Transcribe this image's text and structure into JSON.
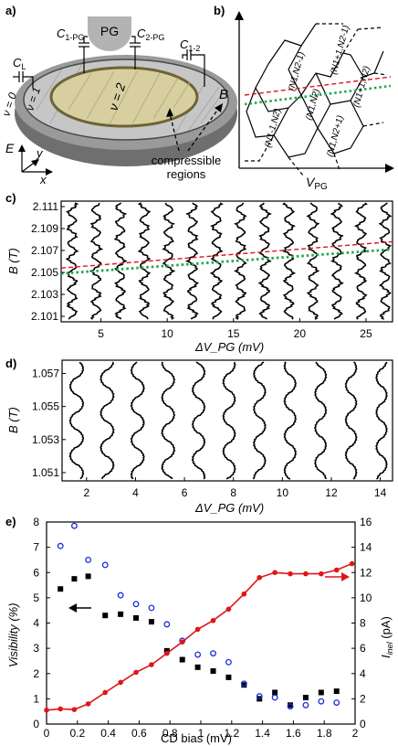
{
  "panels": {
    "a": {
      "label": "a)",
      "pg_label": "PG",
      "c_labels": [
        "C",
        "C",
        "C",
        "C"
      ],
      "c_subs": [
        "L",
        "1-PG",
        "2-PG",
        "1-2"
      ],
      "nu_labels": [
        "ν = 0",
        "ν = 1",
        "ν = 2"
      ],
      "axes": [
        "E",
        "y",
        "x"
      ],
      "compressible_label_1": "compressible",
      "compressible_label_2": "regions"
    },
    "b": {
      "label": "b)",
      "ylabel": "B",
      "xlabel": "V",
      "xlabel_sub": "PG",
      "states": [
        "(N1,N2-1)",
        "(N1+1,N2-1)",
        "(N1,N2)",
        "(N1+1,N2)",
        "(N1-1,N2)",
        "(N1,N2+1)"
      ]
    }
  },
  "chart_data": [
    {
      "id": "c",
      "label": "c)",
      "type": "line",
      "ylabel": "B (T)",
      "xlabel": "ΔV_PG (mV)",
      "xlim": [
        2,
        27
      ],
      "ylim": [
        2.1005,
        2.1115
      ],
      "xticks": [
        5,
        10,
        15,
        20,
        25
      ],
      "yticks": [
        2.101,
        2.103,
        2.105,
        2.107,
        2.109,
        2.111
      ],
      "ytick_labels": [
        "2.101",
        "2.103",
        "2.105",
        "2.107",
        "2.109",
        "2.111"
      ],
      "trace_count": 14,
      "guides": [
        {
          "style": "red-dashed",
          "x": [
            2,
            27
          ],
          "y": [
            2.1054,
            2.1078
          ]
        },
        {
          "style": "green-dotted",
          "x": [
            2,
            27
          ],
          "y": [
            2.1049,
            2.1071
          ]
        }
      ]
    },
    {
      "id": "d",
      "label": "d)",
      "type": "line",
      "ylabel": "B (T)",
      "xlabel": "ΔV_PG (mV)",
      "xlim": [
        1,
        14.5
      ],
      "ylim": [
        1.0505,
        1.0578
      ],
      "xticks": [
        2,
        4,
        6,
        8,
        10,
        12,
        14
      ],
      "yticks": [
        1.051,
        1.053,
        1.055,
        1.057
      ],
      "ytick_labels": [
        "1.051",
        "1.053",
        "1.055",
        "1.057"
      ],
      "trace_count": 11
    },
    {
      "id": "e",
      "label": "e)",
      "type": "scatter",
      "xlabel": "CD bias (mV)",
      "ylabel_left": "Visibility (%)",
      "ylabel_right": "I",
      "ylabel_right_sub": "inel",
      "ylabel_right_unit": " (pA)",
      "xlim": [
        0,
        2
      ],
      "ylim_left": [
        0,
        8
      ],
      "ylim_right": [
        0,
        16
      ],
      "xticks": [
        0,
        0.2,
        0.4,
        0.6,
        0.8,
        1,
        1.2,
        1.4,
        1.6,
        1.8,
        2
      ],
      "yticks_left": [
        0,
        1,
        2,
        3,
        4,
        5,
        6,
        7,
        8
      ],
      "yticks_right": [
        0,
        2,
        4,
        6,
        8,
        10,
        12,
        14,
        16
      ],
      "series": [
        {
          "marker": "black-square",
          "x": [
            0.09,
            0.18,
            0.27,
            0.38,
            0.48,
            0.58,
            0.68,
            0.78,
            0.88,
            0.98,
            1.08,
            1.18,
            1.28,
            1.38,
            1.48,
            1.58,
            1.68,
            1.78,
            1.88
          ],
          "y": [
            5.35,
            5.75,
            5.85,
            4.3,
            4.35,
            4.2,
            4.05,
            2.9,
            2.55,
            2.25,
            2.1,
            1.85,
            1.55,
            1.0,
            1.25,
            0.75,
            1.05,
            1.25,
            1.3
          ]
        },
        {
          "marker": "blue-circle",
          "x": [
            0.09,
            0.18,
            0.27,
            0.38,
            0.48,
            0.58,
            0.68,
            0.78,
            0.88,
            0.98,
            1.08,
            1.18,
            1.28,
            1.38,
            1.48,
            1.58,
            1.68,
            1.78,
            1.88
          ],
          "y": [
            7.05,
            7.85,
            6.5,
            6.3,
            5.1,
            4.75,
            4.6,
            3.95,
            3.3,
            2.75,
            2.8,
            2.45,
            1.6,
            1.1,
            1.05,
            0.7,
            0.75,
            0.9,
            0.85
          ]
        },
        {
          "marker": "red-line",
          "axis": "right",
          "x": [
            0.0,
            0.09,
            0.18,
            0.27,
            0.38,
            0.48,
            0.58,
            0.68,
            0.78,
            0.88,
            0.98,
            1.08,
            1.18,
            1.28,
            1.38,
            1.48,
            1.58,
            1.68,
            1.78,
            1.88,
            1.98
          ],
          "y": [
            1.1,
            1.2,
            1.15,
            1.6,
            2.5,
            3.3,
            4.1,
            4.7,
            5.6,
            6.5,
            7.5,
            8.2,
            9.1,
            10.3,
            11.6,
            12.0,
            11.9,
            11.9,
            11.9,
            12.2,
            12.7
          ]
        }
      ]
    }
  ]
}
